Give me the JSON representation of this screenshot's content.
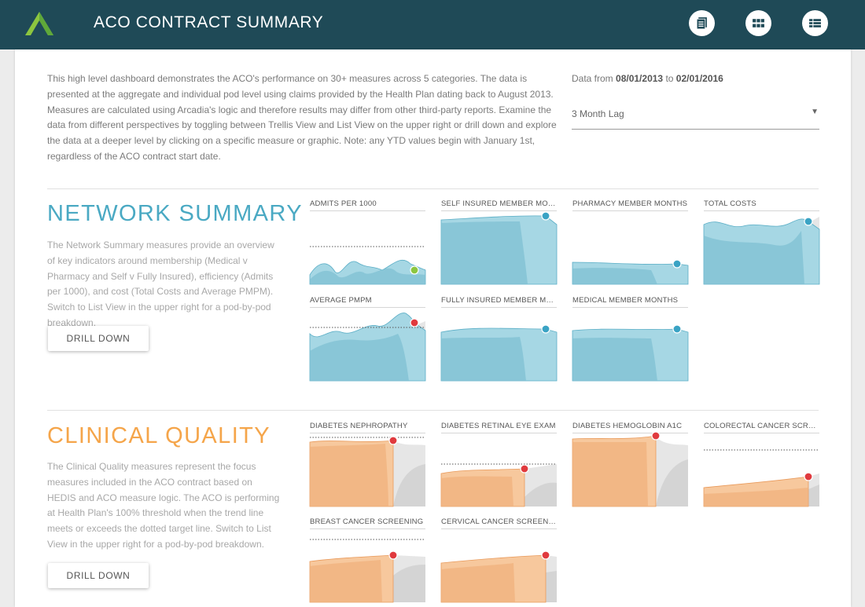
{
  "header": {
    "title": "ACO CONTRACT SUMMARY",
    "icons": [
      "document-icon",
      "grid-icon",
      "list-icon"
    ]
  },
  "intro": {
    "text": "This high level dashboard demonstrates the ACO's performance on 30+ measures across 5 categories. The data is presented at the aggregate and individual pod level using claims provided by the Health Plan dating back to August 2013. Measures are calculated using Arcadia's logic and therefore results may differ from other third-party reports. Examine the data from different perspectives by toggling between Trellis View and List View on the upper right or drill down and explore the data at a deeper level by clicking on a specific measure or graphic. Note: any YTD values begin with January 1st, regardless of the ACO contract start date."
  },
  "filters": {
    "date_prefix": "Data from",
    "date_from": "08/01/2013",
    "date_joiner": "to",
    "date_to": "02/01/2016",
    "lag_value": "3 Month Lag"
  },
  "sections": {
    "network": {
      "title": "NETWORK SUMMARY",
      "color": "#4aa9c3",
      "description": "The Network Summary measures provide an overview of key indicators around membership (Medical v Pharmacy and Self v Fully Insured), efficiency (Admits per 1000), and cost (Total Costs and Average PMPM). Switch to List View in the upper right for a pod-by-pod breakdown.",
      "drill_label": "DRILL DOWN",
      "tiles": [
        {
          "title": "ADMITS PER 1000",
          "status_color": "#8cc63f"
        },
        {
          "title": "SELF INSURED MEMBER MONTHS",
          "status_color": "#3aa3c4"
        },
        {
          "title": "PHARMACY MEMBER MONTHS",
          "status_color": "#3aa3c4"
        },
        {
          "title": "TOTAL COSTS",
          "status_color": "#3aa3c4"
        },
        {
          "title": "AVERAGE PMPM",
          "status_color": "#e03a3e"
        },
        {
          "title": "FULLY INSURED MEMBER MONTHS",
          "status_color": "#3aa3c4"
        },
        {
          "title": "MEDICAL MEMBER MONTHS",
          "status_color": "#3aa3c4"
        }
      ]
    },
    "clinical": {
      "title": "CLINICAL QUALITY",
      "color": "#f5a54a",
      "description": "The Clinical Quality measures represent the focus measures included in the ACO contract based on HEDIS and ACO measure logic. The ACO is performing at Health Plan's 100% threshold when the trend line meets or exceeds the dotted target line. Switch to List View in the upper right for a pod-by-pod breakdown.",
      "drill_label": "DRILL DOWN",
      "tiles": [
        {
          "title": "DIABETES NEPHROPATHY",
          "status_color": "#e03a3e"
        },
        {
          "title": "DIABETES RETINAL EYE EXAM",
          "status_color": "#e03a3e"
        },
        {
          "title": "DIABETES HEMOGLOBIN A1C",
          "status_color": "#e03a3e"
        },
        {
          "title": "COLORECTAL CANCER SCREENING",
          "status_color": "#e03a3e"
        },
        {
          "title": "BREAST CANCER SCREENING",
          "status_color": "#e03a3e"
        },
        {
          "title": "CERVICAL CANCER SCREENING",
          "status_color": "#e03a3e"
        }
      ]
    }
  }
}
